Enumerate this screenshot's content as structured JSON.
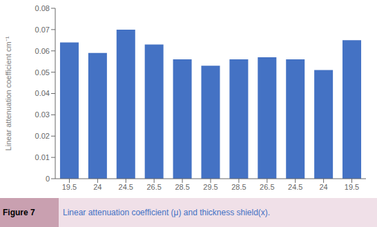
{
  "chart_data": {
    "type": "bar",
    "categories": [
      "19.5",
      "24",
      "24.5",
      "26.5",
      "28.5",
      "29.5",
      "28.5",
      "26.5",
      "24.5",
      "24",
      "19.5"
    ],
    "values": [
      0.064,
      0.059,
      0.07,
      0.063,
      0.056,
      0.053,
      0.056,
      0.057,
      0.056,
      0.051,
      0.065
    ],
    "color": "#4472C4",
    "ylabel": "Linear attenuation coefficient cm⁻¹",
    "ylim": [
      0,
      0.08
    ],
    "yticks": [
      0,
      0.01,
      0.02,
      0.03,
      0.04,
      0.05,
      0.06,
      0.07,
      0.08
    ],
    "grid": false,
    "annotations": [
      "Figure 7",
      "Linear attenuation coefficient (μ) and thickness shield(x)."
    ]
  }
}
